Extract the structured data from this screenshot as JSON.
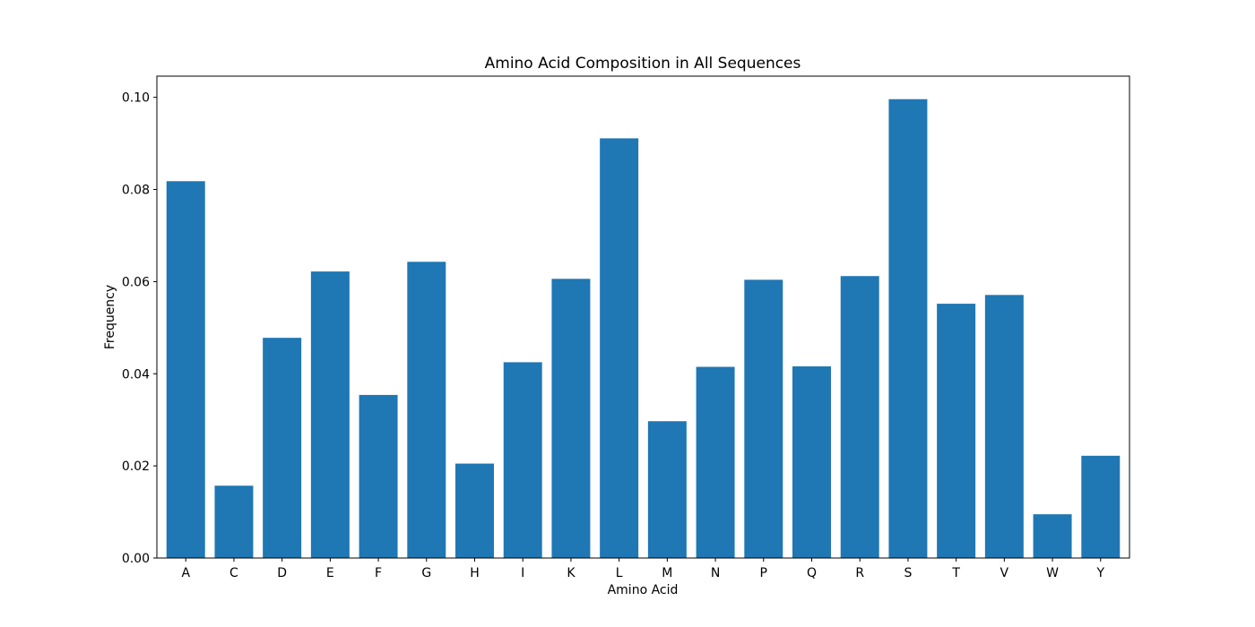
{
  "chart_data": {
    "type": "bar",
    "title": "Amino Acid Composition in All Sequences",
    "xlabel": "Amino Acid",
    "ylabel": "Frequency",
    "categories": [
      "A",
      "C",
      "D",
      "E",
      "F",
      "G",
      "H",
      "I",
      "K",
      "L",
      "M",
      "N",
      "P",
      "Q",
      "R",
      "S",
      "T",
      "V",
      "W",
      "Y"
    ],
    "values": [
      0.0818,
      0.0157,
      0.0478,
      0.0622,
      0.0354,
      0.0643,
      0.0205,
      0.0425,
      0.0606,
      0.0911,
      0.0297,
      0.0415,
      0.0604,
      0.0416,
      0.0612,
      0.0996,
      0.0552,
      0.0571,
      0.0095,
      0.0222
    ],
    "ylim": [
      0,
      0.1046
    ],
    "yticks": [
      0.0,
      0.02,
      0.04,
      0.06,
      0.08,
      0.1
    ],
    "ytick_labels": [
      "0.00",
      "0.02",
      "0.04",
      "0.06",
      "0.08",
      "0.10"
    ],
    "grid": false,
    "legend": "none",
    "bar_color": "#1f77b4"
  }
}
